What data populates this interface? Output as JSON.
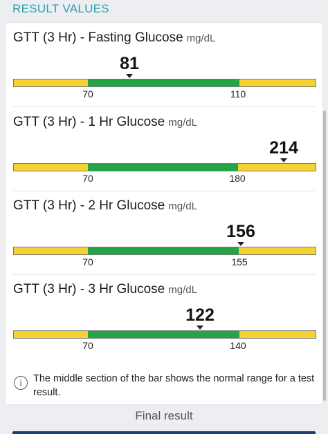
{
  "header": {
    "title": "RESULT VALUES"
  },
  "results": [
    {
      "name": "GTT (3 Hr) - Fasting Glucose",
      "unit": "mg/dL",
      "value": "81",
      "low": "70",
      "high": "110",
      "value_num": 81,
      "low_num": 70,
      "high_num": 110
    },
    {
      "name": "GTT (3 Hr) - 1 Hr Glucose",
      "unit": "mg/dL",
      "value": "214",
      "low": "70",
      "high": "180",
      "value_num": 214,
      "low_num": 70,
      "high_num": 180
    },
    {
      "name": "GTT (3 Hr) - 2 Hr Glucose",
      "unit": "mg/dL",
      "value": "156",
      "low": "70",
      "high": "155",
      "value_num": 156,
      "low_num": 70,
      "high_num": 155
    },
    {
      "name": "GTT (3 Hr) - 3 Hr Glucose",
      "unit": "mg/dL",
      "value": "122",
      "low": "70",
      "high": "140",
      "value_num": 122,
      "low_num": 70,
      "high_num": 140
    }
  ],
  "note": {
    "icon": "info-icon",
    "text": "The middle section of the bar shows the normal range for a test result."
  },
  "footer": {
    "status": "Final result"
  },
  "colors": {
    "normal": "#22a447",
    "outside": "#f5d132",
    "accent": "#2a9fb0"
  }
}
